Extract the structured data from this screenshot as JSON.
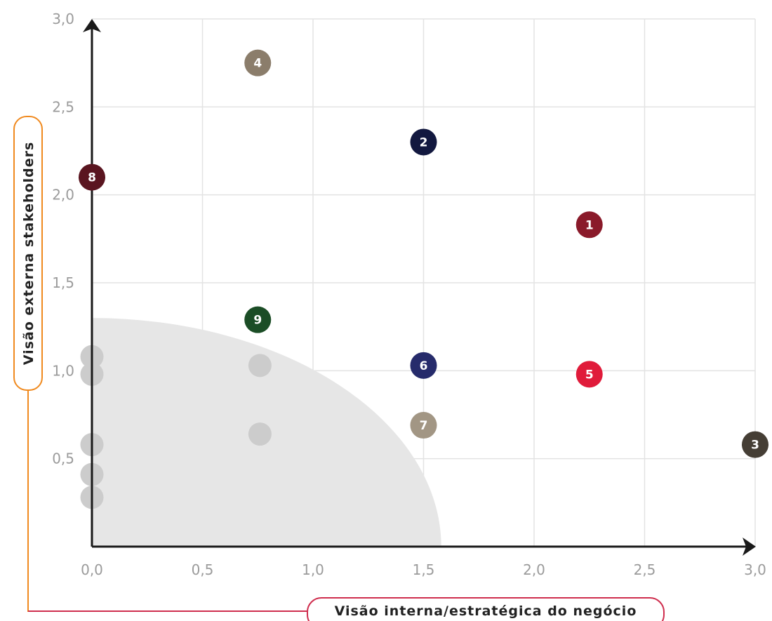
{
  "chart_data": {
    "type": "scatter",
    "xlabel": "Visão interna/estratégica do negócio",
    "ylabel": "Visão externa stakeholders",
    "xlim": [
      0,
      3
    ],
    "ylim": [
      0,
      3
    ],
    "xticks": [
      "0,0",
      "0,5",
      "1,0",
      "1,5",
      "2,0",
      "2,5",
      "3,0"
    ],
    "yticks": [
      "0,5",
      "1,0",
      "1,5",
      "2,0",
      "2,5",
      "3,0"
    ],
    "grid": true,
    "highlight_region": {
      "shape": "quarter-circle",
      "radius_x": 1.58,
      "radius_y": 1.3,
      "color": "#e6e6e6"
    },
    "points": [
      {
        "label": "1",
        "x": 2.25,
        "y": 1.83,
        "color": "#8a1a2a"
      },
      {
        "label": "2",
        "x": 1.5,
        "y": 2.3,
        "color": "#12183f"
      },
      {
        "label": "3",
        "x": 3.0,
        "y": 0.58,
        "color": "#453e35"
      },
      {
        "label": "4",
        "x": 0.75,
        "y": 2.75,
        "color": "#8b7d6b"
      },
      {
        "label": "5",
        "x": 2.25,
        "y": 0.98,
        "color": "#e01b3a"
      },
      {
        "label": "6",
        "x": 1.5,
        "y": 1.03,
        "color": "#262b6b"
      },
      {
        "label": "7",
        "x": 1.5,
        "y": 0.69,
        "color": "#a29684"
      },
      {
        "label": "8",
        "x": 0.0,
        "y": 2.1,
        "color": "#5a1520"
      },
      {
        "label": "9",
        "x": 0.75,
        "y": 1.29,
        "color": "#1b4d26"
      }
    ],
    "background_points": [
      {
        "x": 0.0,
        "y": 1.08
      },
      {
        "x": 0.0,
        "y": 0.98
      },
      {
        "x": 0.0,
        "y": 0.58
      },
      {
        "x": 0.0,
        "y": 0.41
      },
      {
        "x": 0.0,
        "y": 0.28
      },
      {
        "x": 0.76,
        "y": 1.03
      },
      {
        "x": 0.76,
        "y": 0.64
      }
    ],
    "colors": {
      "grid": "#e3e3e3",
      "axis": "#1a1a1a",
      "background_point": "#cccccc",
      "ylabel_border": "#f08a1f",
      "xlabel_border": "#cf2e4e"
    }
  }
}
